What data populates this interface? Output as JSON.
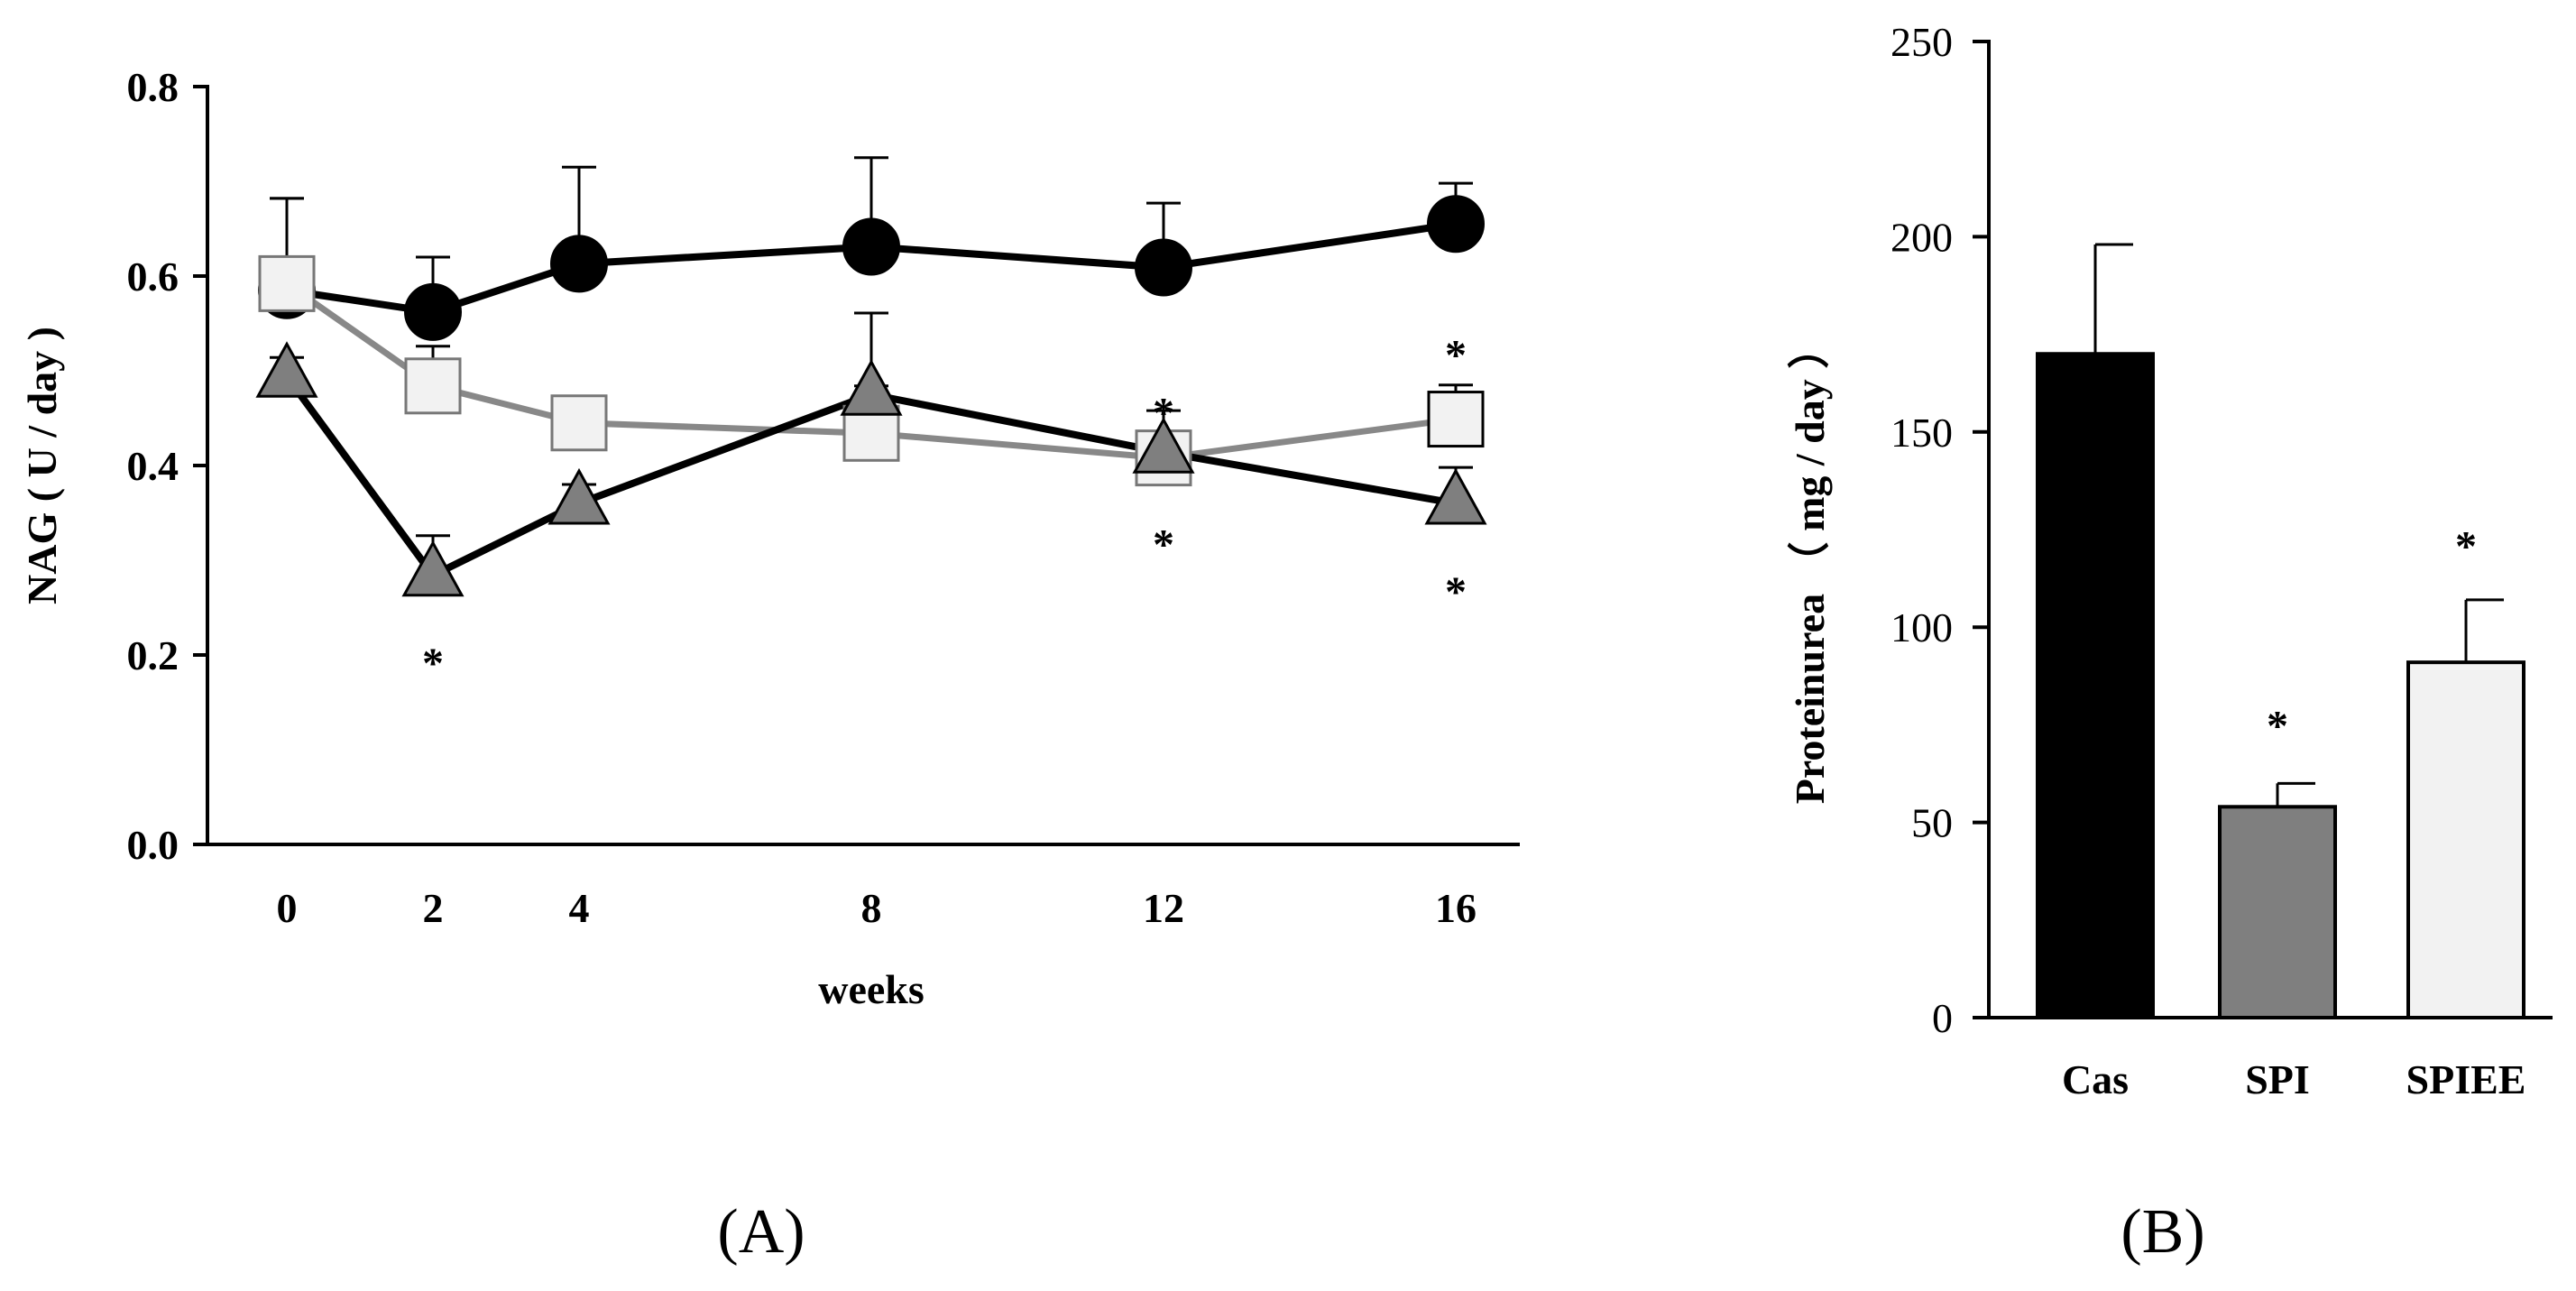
{
  "panel_labels": {
    "a": "(A)",
    "b": "(B)"
  },
  "chart_data": [
    {
      "type": "line",
      "panel": "(A)",
      "title": "",
      "xlabel": "weeks",
      "ylabel": "NAG ( U / day )",
      "x": [
        0,
        2,
        4,
        8,
        12,
        16
      ],
      "x_tick_labels": [
        "0",
        "2",
        "4",
        "8",
        "12",
        "16"
      ],
      "ylim": [
        0,
        0.8
      ],
      "y_ticks": [
        0,
        0.2,
        0.4,
        0.6,
        0.8
      ],
      "y_tick_labels": [
        "0.0",
        "0.2",
        "0.4",
        "0.6",
        "0.8"
      ],
      "grid": false,
      "legend": "none",
      "series": [
        {
          "marker": "circle",
          "line_color": "#000000",
          "fill_color": "#000000",
          "values": [
            0.585,
            0.562,
            0.613,
            0.631,
            0.609,
            0.655
          ],
          "error": [
            0.097,
            0.058,
            0.102,
            0.094,
            0.068,
            0.043
          ]
        },
        {
          "marker": "square",
          "line_color": "#888888",
          "fill_color": "#f2f2f2",
          "values": [
            0.592,
            0.484,
            0.445,
            0.434,
            0.408,
            0.449
          ],
          "error": [
            0.09,
            0.042,
            0.0,
            0.05,
            0.05,
            0.036
          ]
        },
        {
          "marker": "triangle",
          "line_color": "#000000",
          "fill_color": "#7f7f7f",
          "values": [
            0.494,
            0.284,
            0.36,
            0.475,
            0.414,
            0.36
          ],
          "error": [
            0.02,
            0.042,
            0.02,
            0.086,
            0.0,
            0.038
          ]
        }
      ],
      "annotations": [
        {
          "text": "*",
          "x": 2,
          "y": 0.205
        },
        {
          "text": "*",
          "x": 12,
          "y": 0.469
        },
        {
          "text": "*",
          "x": 12,
          "y": 0.33
        },
        {
          "text": "*",
          "x": 16,
          "y": 0.53
        },
        {
          "text": "*",
          "x": 16,
          "y": 0.28
        }
      ]
    },
    {
      "type": "bar",
      "panel": "(B)",
      "title": "",
      "xlabel": "",
      "ylabel": "Proteinurea （ mg / day ）",
      "categories": [
        "Cas",
        "SPI",
        "SPIEE"
      ],
      "values": [
        170,
        54,
        91
      ],
      "error": [
        28,
        6,
        16
      ],
      "colors": [
        "#000000",
        "#7f7f7f",
        "#f2f2f2"
      ],
      "ylim": [
        0,
        250
      ],
      "y_ticks": [
        0,
        50,
        100,
        150,
        200,
        250
      ],
      "y_tick_labels": [
        "0",
        "50",
        "100",
        "150",
        "200",
        "250"
      ],
      "grid": false,
      "legend": "none",
      "annotations": [
        {
          "text": "*",
          "category": "SPI",
          "y": 78
        },
        {
          "text": "*",
          "category": "SPIEE",
          "y": 124
        }
      ]
    }
  ]
}
